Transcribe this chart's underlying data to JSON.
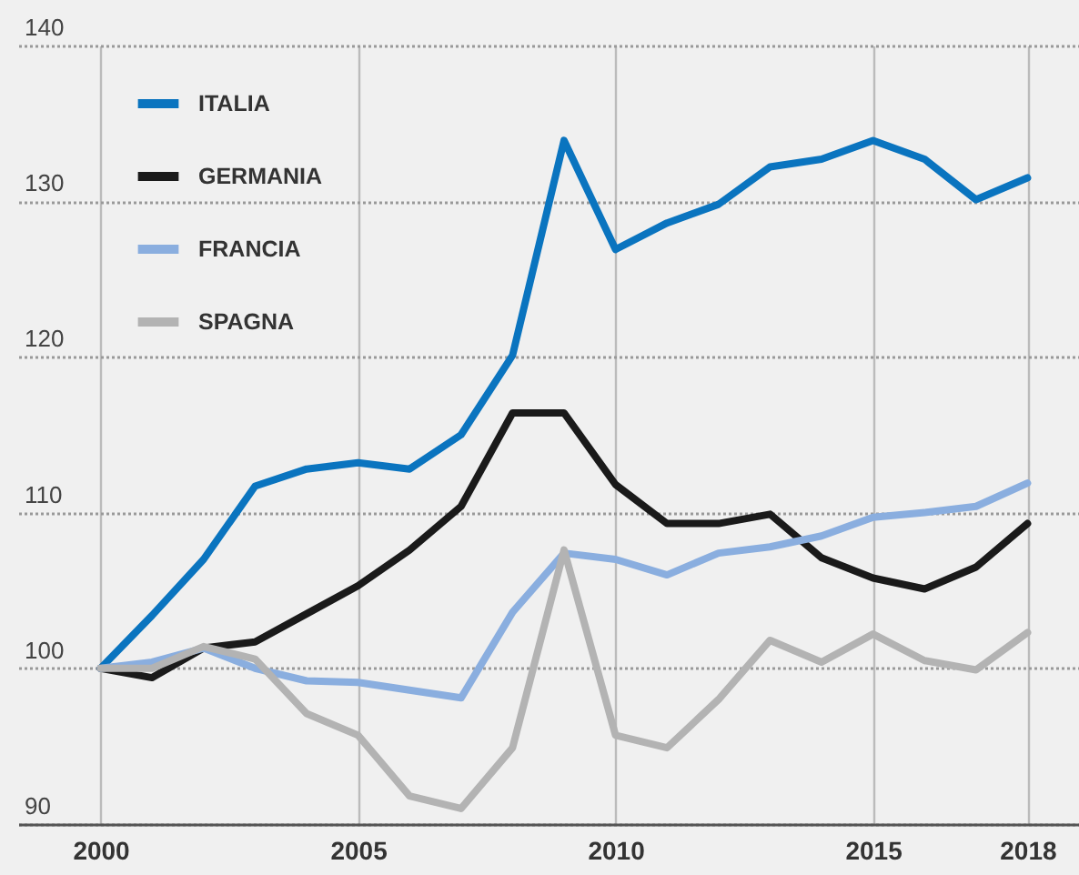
{
  "chart_data": {
    "type": "line",
    "x": [
      2000,
      2001,
      2002,
      2003,
      2004,
      2005,
      2006,
      2007,
      2008,
      2009,
      2010,
      2011,
      2012,
      2013,
      2014,
      2015,
      2016,
      2017,
      2018
    ],
    "series": [
      {
        "name": "ITALIA",
        "color": "#0a74bf",
        "values": [
          100,
          103.4,
          107.0,
          111.7,
          112.8,
          113.2,
          112.8,
          115.0,
          120.1,
          133.9,
          126.9,
          128.6,
          129.8,
          132.2,
          132.7,
          133.9,
          132.7,
          130.1,
          131.5
        ]
      },
      {
        "name": "GERMANIA",
        "color": "#1a1a1a",
        "values": [
          100,
          99.4,
          101.3,
          101.7,
          103.5,
          105.3,
          107.6,
          110.4,
          116.4,
          116.4,
          111.8,
          109.3,
          109.3,
          109.9,
          107.1,
          105.8,
          105.1,
          106.5,
          109.3
        ]
      },
      {
        "name": "FRANCIA",
        "color": "#8aaedf",
        "values": [
          100,
          100.4,
          101.3,
          100.0,
          99.2,
          99.1,
          98.6,
          98.1,
          103.6,
          107.4,
          107.0,
          106.0,
          107.4,
          107.8,
          108.5,
          109.7,
          110.0,
          110.4,
          111.9
        ]
      },
      {
        "name": "SPAGNA",
        "color": "#b3b3b3",
        "values": [
          100,
          100.0,
          101.4,
          100.6,
          97.1,
          95.7,
          91.8,
          91.0,
          94.9,
          107.6,
          95.7,
          94.9,
          98.0,
          101.8,
          100.4,
          102.2,
          100.5,
          99.9,
          102.3
        ]
      }
    ],
    "xlim": [
      1998.4,
      2019
    ],
    "xticks": [
      2000,
      2005,
      2010,
      2015,
      2018
    ],
    "ylim": [
      90,
      140
    ],
    "yticks": [
      90,
      100,
      110,
      120,
      130,
      140
    ],
    "grid": true,
    "legend": "top left",
    "line_style": "solid"
  }
}
